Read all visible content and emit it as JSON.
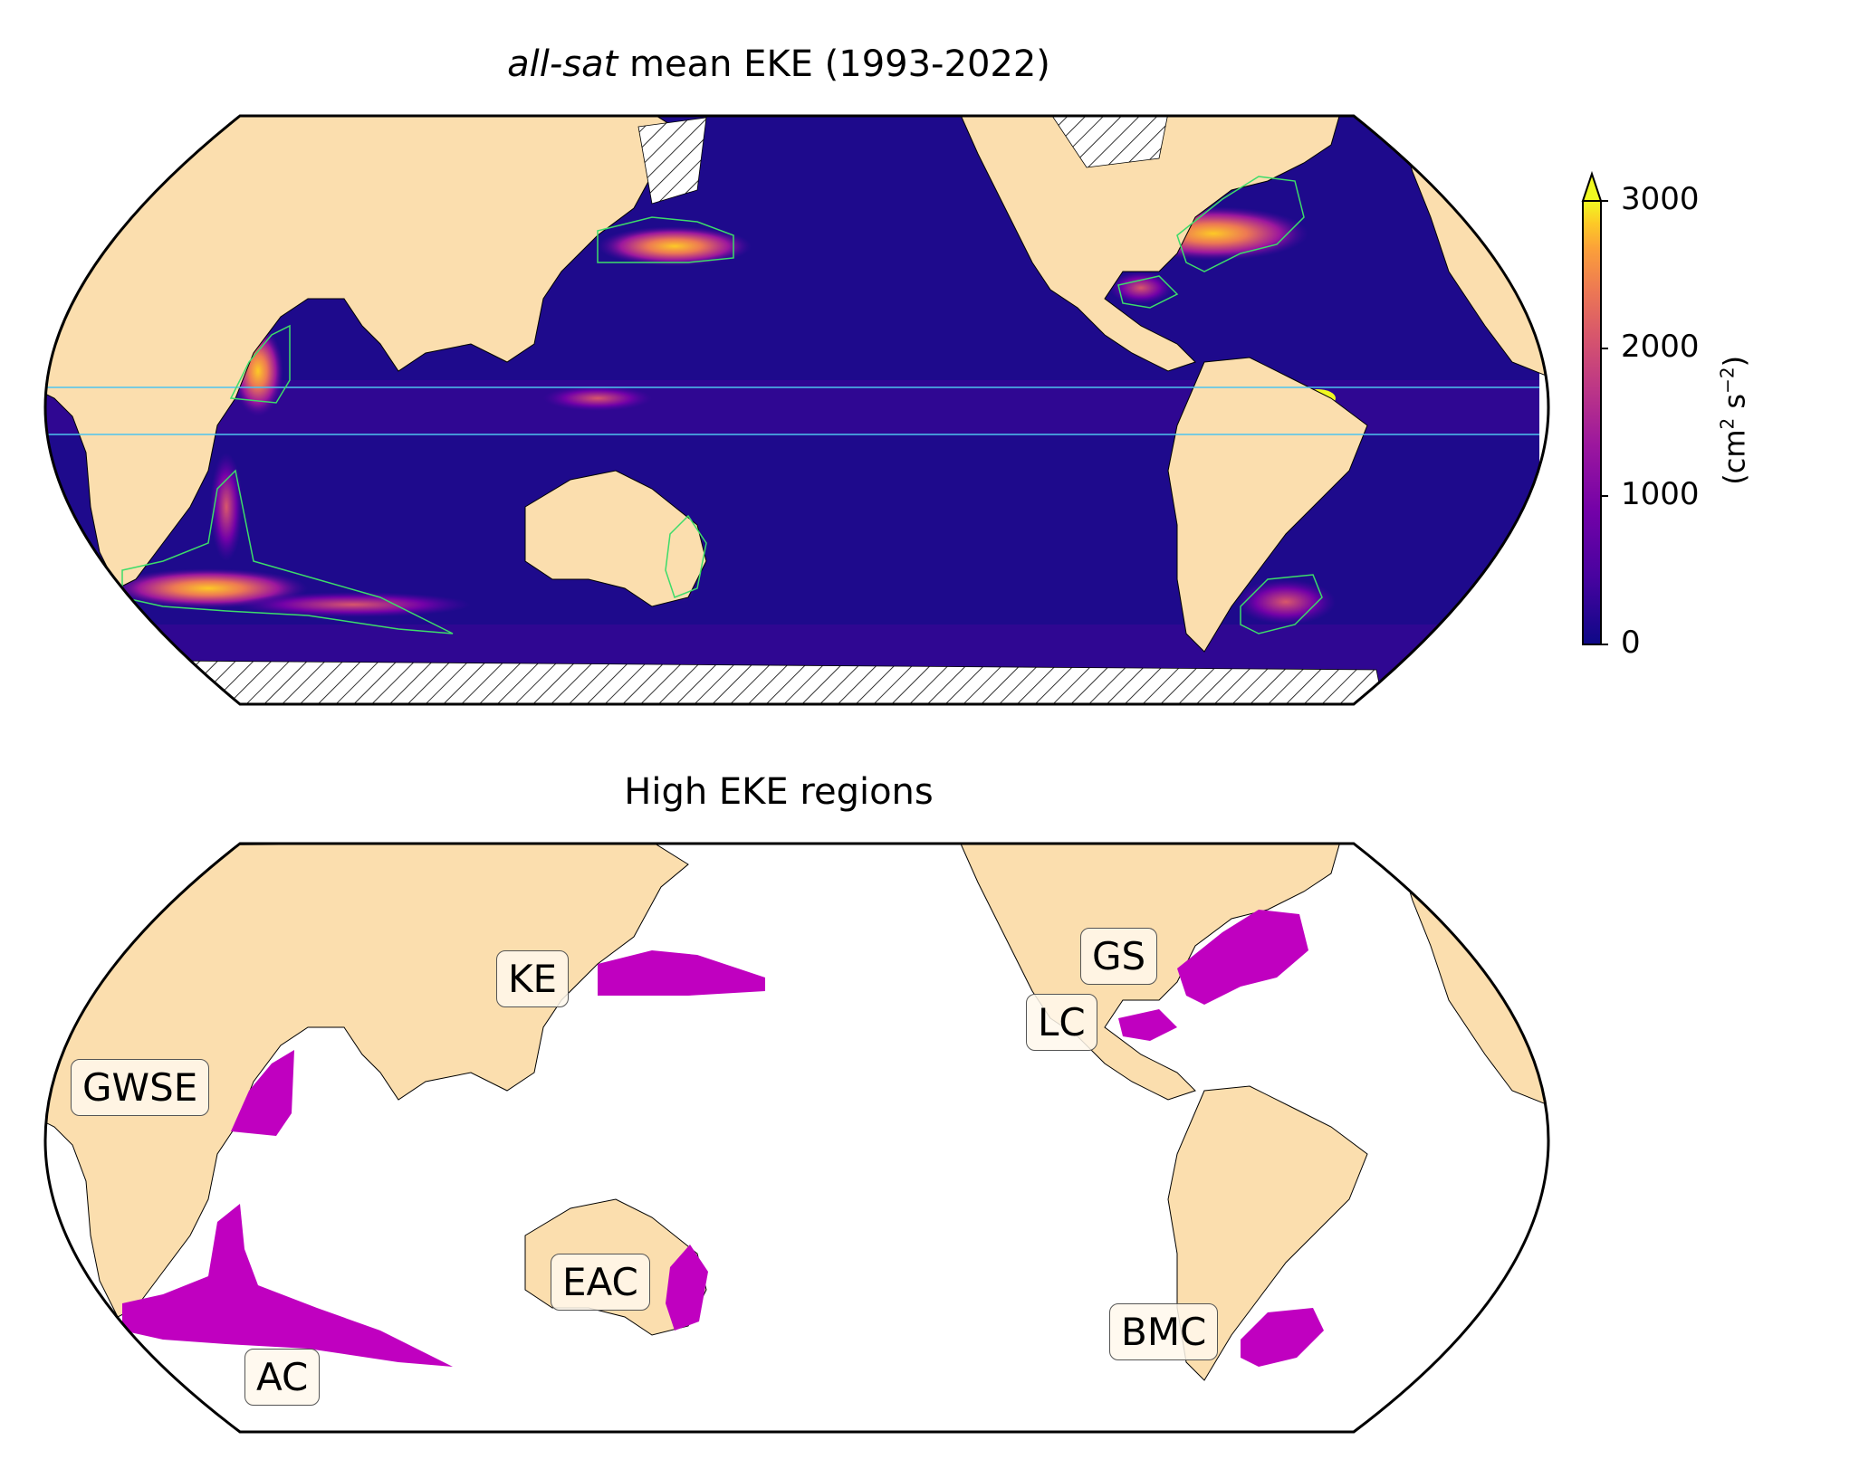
{
  "top_panel": {
    "title_italic": "all-sat",
    "title_rest": " mean EKE (1993-2022)"
  },
  "colorbar": {
    "ticks": [
      "3000",
      "2000",
      "1000",
      "0"
    ],
    "tick_values": [
      3000,
      2000,
      1000,
      0
    ],
    "min": 0,
    "max": 3000,
    "extend": "max",
    "colormap": "plasma",
    "unit_base": "(cm",
    "unit_sup1": "2",
    "unit_mid": " s",
    "unit_sup2": "−2",
    "unit_end": ")"
  },
  "bottom_panel": {
    "title": "High EKE regions",
    "region_color": "#c000c0"
  },
  "regions": [
    {
      "id": "GS",
      "label": "GS"
    },
    {
      "id": "LC",
      "label": "LC"
    },
    {
      "id": "KE",
      "label": "KE"
    },
    {
      "id": "GWSE",
      "label": "GWSE"
    },
    {
      "id": "EAC",
      "label": "EAC"
    },
    {
      "id": "AC",
      "label": "AC"
    },
    {
      "id": "BMC",
      "label": "BMC"
    }
  ],
  "colors": {
    "land": "#fbdeae",
    "ocean_low": "#1a0686",
    "contour": "#3ddc6a",
    "equator_lines": "#4ec3ee",
    "region_fill": "#c000c0"
  }
}
